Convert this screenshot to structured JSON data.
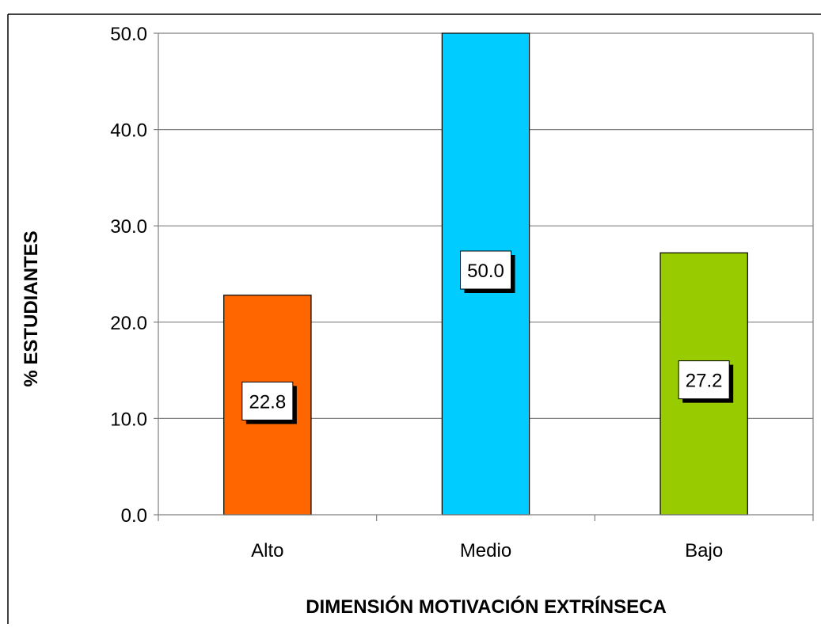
{
  "chart_data": {
    "type": "bar",
    "categories": [
      "Alto",
      "Medio",
      "Bajo"
    ],
    "values": [
      22.8,
      50.0,
      27.2
    ],
    "data_labels": [
      "22.8",
      "50.0",
      "27.2"
    ],
    "bar_colors": [
      "#ff6600",
      "#00ccff",
      "#99cc00"
    ],
    "title": "",
    "xlabel": "DIMENSIÓN MOTIVACIÓN EXTRÍNSECA",
    "ylabel": "% ESTUDIANTES",
    "ylim": [
      0,
      50
    ],
    "yticks": [
      "0.0",
      "10.0",
      "20.0",
      "30.0",
      "40.0",
      "50.0"
    ],
    "grid": true,
    "legend": "none"
  }
}
